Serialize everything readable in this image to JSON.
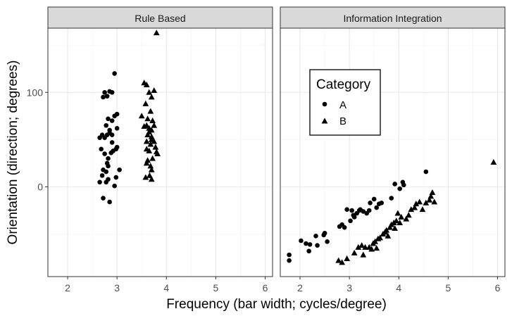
{
  "chart_data": {
    "type": "scatter",
    "xlabel": "Frequency (bar width; cycles/degree)",
    "ylabel": "Orientation (direction; degrees)",
    "xlim": [
      1.6,
      6.15
    ],
    "ylim": [
      -95,
      168
    ],
    "x_ticks": [
      2,
      3,
      4,
      5,
      6
    ],
    "y_ticks": [
      0,
      100
    ],
    "grid": true,
    "legend": {
      "title": "Category",
      "placement": "inside right panel, upper-left",
      "entries": [
        {
          "label": "A",
          "shape": "circle"
        },
        {
          "label": "B",
          "shape": "triangle"
        }
      ]
    },
    "colors": {
      "points": "#000000",
      "strip_fill": "#d9d9d9",
      "grid_major": "#ebebeb",
      "grid_minor": "#f5f5f5",
      "border": "#333333"
    },
    "panels": [
      {
        "title": "Rule Based",
        "series": [
          {
            "name": "A",
            "points": [
              [
                2.65,
                52
              ],
              [
                2.7,
                55
              ],
              [
                2.72,
                95
              ],
              [
                2.75,
                100
              ],
              [
                2.8,
                96
              ],
              [
                2.85,
                101
              ],
              [
                2.9,
                100
              ],
              [
                2.95,
                120
              ],
              [
                2.68,
                40
              ],
              [
                2.75,
                35
              ],
              [
                2.8,
                25
              ],
              [
                2.82,
                22
              ],
              [
                2.78,
                16
              ],
              [
                2.72,
                18
              ],
              [
                2.7,
                12
              ],
              [
                2.65,
                5
              ],
              [
                2.78,
                5
              ],
              [
                2.82,
                8
              ],
              [
                2.72,
                -12
              ],
              [
                2.85,
                -16
              ],
              [
                2.95,
                1
              ],
              [
                2.98,
                10
              ],
              [
                3.05,
                18
              ],
              [
                2.98,
                40
              ],
              [
                3.0,
                42
              ],
              [
                2.92,
                38
              ],
              [
                2.88,
                36
              ],
              [
                2.9,
                47
              ],
              [
                2.8,
                55
              ],
              [
                2.85,
                57
              ],
              [
                2.78,
                65
              ],
              [
                2.9,
                70
              ],
              [
                2.82,
                72
              ],
              [
                2.95,
                75
              ],
              [
                3.0,
                77
              ],
              [
                2.85,
                60
              ],
              [
                2.9,
                55
              ],
              [
                3.0,
                62
              ],
              [
                2.75,
                52
              ],
              [
                2.82,
                30
              ]
            ]
          },
          {
            "name": "B",
            "points": [
              [
                3.5,
                75
              ],
              [
                3.55,
                110
              ],
              [
                3.6,
                108
              ],
              [
                3.65,
                100
              ],
              [
                3.7,
                95
              ],
              [
                3.75,
                102
              ],
              [
                3.8,
                163
              ],
              [
                3.6,
                65
              ],
              [
                3.65,
                62
              ],
              [
                3.7,
                60
              ],
              [
                3.62,
                55
              ],
              [
                3.7,
                50
              ],
              [
                3.75,
                48
              ],
              [
                3.68,
                45
              ],
              [
                3.6,
                40
              ],
              [
                3.65,
                38
              ],
              [
                3.8,
                37
              ],
              [
                3.82,
                35
              ],
              [
                3.72,
                30
              ],
              [
                3.62,
                28
              ],
              [
                3.6,
                25
              ],
              [
                3.68,
                22
              ],
              [
                3.7,
                18
              ],
              [
                3.58,
                10
              ],
              [
                3.66,
                12
              ],
              [
                3.7,
                8
              ],
              [
                3.72,
                70
              ],
              [
                3.62,
                72
              ],
              [
                3.58,
                88
              ],
              [
                3.68,
                80
              ],
              [
                3.75,
                65
              ],
              [
                3.78,
                42
              ],
              [
                3.65,
                58
              ],
              [
                3.7,
                53
              ],
              [
                3.55,
                64
              ],
              [
                3.6,
                48
              ]
            ]
          }
        ]
      },
      {
        "title": "Information Integration",
        "series": [
          {
            "name": "A",
            "points": [
              [
                1.78,
                -72
              ],
              [
                1.78,
                -78
              ],
              [
                2.02,
                -57
              ],
              [
                2.12,
                -60
              ],
              [
                2.18,
                -68
              ],
              [
                2.2,
                -61
              ],
              [
                2.32,
                -52
              ],
              [
                2.35,
                -62
              ],
              [
                2.48,
                -51
              ],
              [
                2.5,
                -49
              ],
              [
                2.55,
                -58
              ],
              [
                2.8,
                -42
              ],
              [
                2.85,
                -40
              ],
              [
                2.9,
                -43
              ],
              [
                2.95,
                -24
              ],
              [
                3.02,
                -36
              ],
              [
                3.05,
                -25
              ],
              [
                3.08,
                -30
              ],
              [
                3.1,
                -32
              ],
              [
                3.15,
                -28
              ],
              [
                3.2,
                -25
              ],
              [
                3.22,
                -24
              ],
              [
                3.28,
                -26
              ],
              [
                3.35,
                -28
              ],
              [
                3.4,
                -25
              ],
              [
                3.42,
                -17
              ],
              [
                3.5,
                -13
              ],
              [
                3.55,
                -22
              ],
              [
                3.6,
                -18
              ],
              [
                3.65,
                -17
              ],
              [
                3.85,
                -12
              ],
              [
                3.92,
                3
              ],
              [
                4.02,
                -2
              ],
              [
                4.08,
                5
              ],
              [
                4.1,
                2
              ],
              [
                4.55,
                16
              ]
            ]
          },
          {
            "name": "B",
            "points": [
              [
                2.78,
                -78
              ],
              [
                2.85,
                -80
              ],
              [
                2.95,
                -76
              ],
              [
                3.1,
                -70
              ],
              [
                3.18,
                -64
              ],
              [
                3.25,
                -62
              ],
              [
                3.28,
                -72
              ],
              [
                3.32,
                -64
              ],
              [
                3.4,
                -64
              ],
              [
                3.45,
                -66
              ],
              [
                3.48,
                -60
              ],
              [
                3.52,
                -58
              ],
              [
                3.55,
                -65
              ],
              [
                3.58,
                -55
              ],
              [
                3.62,
                -54
              ],
              [
                3.68,
                -50
              ],
              [
                3.72,
                -48
              ],
              [
                3.75,
                -46
              ],
              [
                3.78,
                -52
              ],
              [
                3.82,
                -43
              ],
              [
                3.85,
                -40
              ],
              [
                3.9,
                -38
              ],
              [
                3.92,
                -44
              ],
              [
                3.95,
                -36
              ],
              [
                3.98,
                -28
              ],
              [
                4.02,
                -38
              ],
              [
                4.05,
                -32
              ],
              [
                4.15,
                -34
              ],
              [
                4.2,
                -30
              ],
              [
                4.25,
                -24
              ],
              [
                4.32,
                -22
              ],
              [
                4.35,
                -18
              ],
              [
                4.42,
                -16
              ],
              [
                4.48,
                -24
              ],
              [
                4.55,
                -17
              ],
              [
                4.62,
                -14
              ],
              [
                4.65,
                -10
              ],
              [
                4.68,
                -6
              ],
              [
                4.72,
                -16
              ],
              [
                5.92,
                26
              ]
            ]
          }
        ]
      }
    ]
  }
}
